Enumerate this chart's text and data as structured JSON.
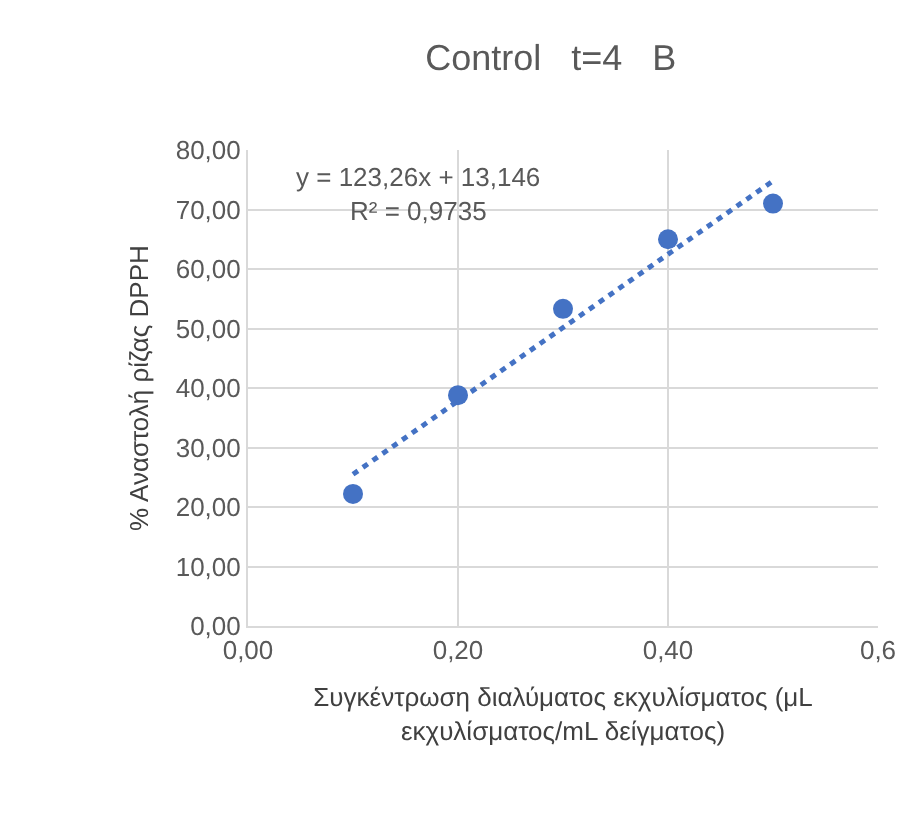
{
  "chart_data": {
    "type": "scatter",
    "title": "Control   t=4   B",
    "xlabel": "Συγκέντρωση διαλύματος εκχυλίσματος (μL εκχυλίσματος/mL δείγματος)",
    "ylabel": "% Αναστολή ρίζας DPPH",
    "x": [
      0.1,
      0.2,
      0.3,
      0.4,
      0.5
    ],
    "series": [
      {
        "color": "#4472c4",
        "values": [
          22.2,
          38.8,
          53.3,
          65.0,
          71.0
        ],
        "marker": "circle"
      },
      {
        "type": "line",
        "color": "#4472c4",
        "x": [
          0.1,
          0.5
        ],
        "values": [
          25.5,
          74.8
        ],
        "marker": "none",
        "line_style": "dotted"
      }
    ],
    "annotations": [
      "y = 123,26x + 13,146",
      "R² = 0,9735"
    ],
    "xlim": [
      0,
      0.6
    ],
    "xticks": [
      {
        "value": 0,
        "label": "0,00"
      },
      {
        "value": 0.2,
        "label": "0,20"
      },
      {
        "value": 0.4,
        "label": "0,40"
      },
      {
        "value": 0.6,
        "label": "0,6"
      }
    ],
    "ylim": [
      0,
      80
    ],
    "yticks": [
      {
        "value": 0,
        "label": "0,00"
      },
      {
        "value": 10,
        "label": "10,00"
      },
      {
        "value": 20,
        "label": "20,00"
      },
      {
        "value": 30,
        "label": "30,00"
      },
      {
        "value": 40,
        "label": "40,00"
      },
      {
        "value": 50,
        "label": "50,00"
      },
      {
        "value": 60,
        "label": "60,00"
      },
      {
        "value": 70,
        "label": "70,00"
      },
      {
        "value": 80,
        "label": "80,00"
      }
    ],
    "grid": true
  }
}
